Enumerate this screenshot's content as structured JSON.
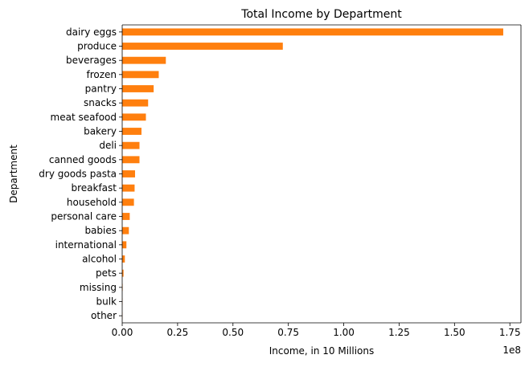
{
  "chart_data": {
    "type": "bar",
    "orientation": "horizontal",
    "title": "Total Income by Department",
    "xlabel": "Income, in 10 Millions",
    "ylabel": "Department",
    "x_offset_label": "1e8",
    "x_scale_multiplier": 100000000,
    "xlim": [
      0,
      1.8
    ],
    "x_ticks": [
      0.0,
      0.25,
      0.5,
      0.75,
      1.0,
      1.25,
      1.5,
      1.75
    ],
    "x_tick_labels": [
      "0.00",
      "0.25",
      "0.50",
      "0.75",
      "1.00",
      "1.25",
      "1.50",
      "1.75"
    ],
    "grid": false,
    "bar_color": "#ff7f0e",
    "categories": [
      "dairy eggs",
      "produce",
      "beverages",
      "frozen",
      "pantry",
      "snacks",
      "meat seafood",
      "bakery",
      "deli",
      "canned goods",
      "dry goods pasta",
      "breakfast",
      "household",
      "personal care",
      "babies",
      "international",
      "alcohol",
      "pets",
      "missing",
      "bulk",
      "other"
    ],
    "values": [
      1.72,
      0.725,
      0.197,
      0.165,
      0.142,
      0.117,
      0.107,
      0.087,
      0.078,
      0.078,
      0.058,
      0.056,
      0.053,
      0.034,
      0.03,
      0.019,
      0.012,
      0.006,
      0.002,
      0.001,
      0.001
    ]
  }
}
